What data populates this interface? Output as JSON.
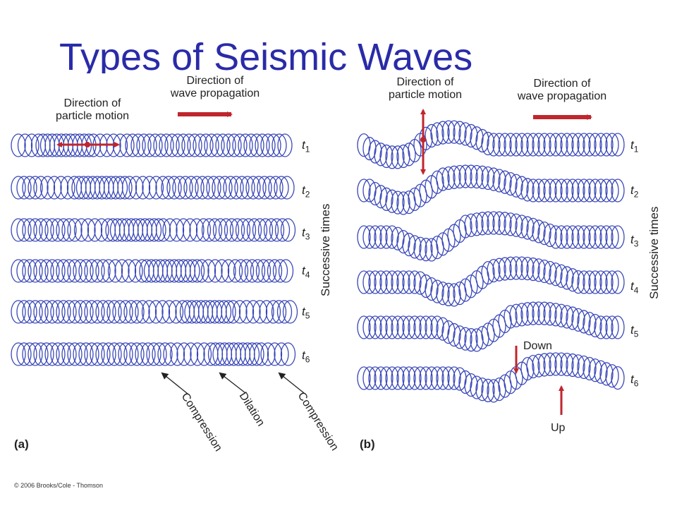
{
  "slide": {
    "title": "Types of Seismic Waves",
    "copyright": "© 2006 Brooks/Cole - Thomson"
  },
  "panel_a": {
    "label": "(a)",
    "particle_motion": "Direction of particle motion",
    "particle_motion_lines": [
      "Direction of",
      "particle motion"
    ],
    "propagation_lines": [
      "Direction of",
      "wave propagation"
    ],
    "time_labels": [
      "t1",
      "t2",
      "t3",
      "t4",
      "t5",
      "t6"
    ],
    "time_axis_label": "Successive times",
    "annotations": [
      "Compression",
      "Dilation",
      "Compression"
    ]
  },
  "panel_b": {
    "label": "(b)",
    "particle_motion_lines": [
      "Direction of",
      "particle motion"
    ],
    "propagation_lines": [
      "Direction of",
      "wave propagation"
    ],
    "time_labels": [
      "t1",
      "t2",
      "t3",
      "t4",
      "t5",
      "t6"
    ],
    "time_axis_label": "Successive times",
    "down_label": "Down",
    "up_label": "Up"
  },
  "colors": {
    "title": "#2a2ba8",
    "coil": "#3a48b8",
    "arrow": "#c0262d"
  }
}
